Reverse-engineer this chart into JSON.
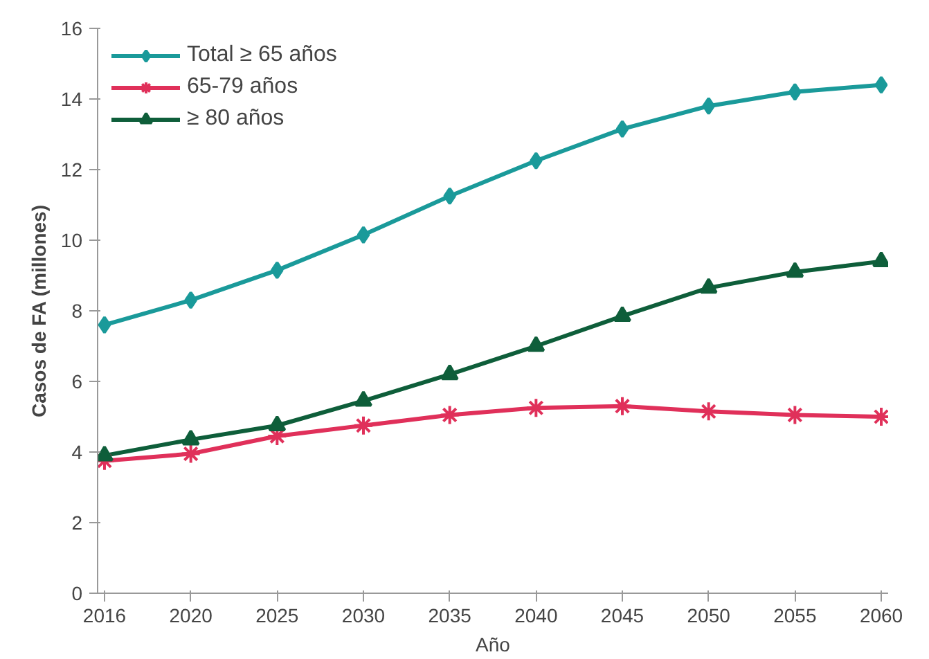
{
  "chart_data": {
    "type": "line",
    "xlabel": "Año",
    "ylabel": "Casos de FA (millones)",
    "categories": [
      "2016",
      "2020",
      "2025",
      "2030",
      "2035",
      "2040",
      "2045",
      "2050",
      "2055",
      "2060"
    ],
    "series": [
      {
        "name": "Total ≥ 65 años",
        "color": "#1a9a9a",
        "marker": "diamond",
        "values": [
          7.6,
          8.3,
          9.15,
          10.15,
          11.25,
          12.25,
          13.15,
          13.8,
          14.2,
          14.4
        ]
      },
      {
        "name": "65-79 años",
        "color": "#e0305a",
        "marker": "cross",
        "values": [
          3.75,
          3.95,
          4.45,
          4.75,
          5.05,
          5.25,
          5.3,
          5.15,
          5.05,
          5.0
        ]
      },
      {
        "name": "≥ 80 años",
        "color": "#0e5e3a",
        "marker": "triangle",
        "values": [
          3.9,
          4.35,
          4.75,
          5.45,
          6.2,
          7.0,
          7.85,
          8.65,
          9.1,
          9.4
        ]
      }
    ],
    "ylim": [
      0,
      16
    ],
    "yticks": [
      0,
      2,
      4,
      6,
      8,
      10,
      12,
      14,
      16
    ],
    "grid": false,
    "legend": "top left",
    "line_style": "solid"
  }
}
